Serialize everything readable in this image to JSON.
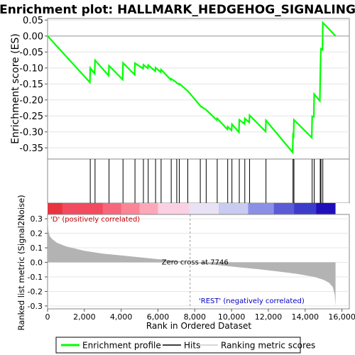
{
  "chart_data": {
    "type": "line",
    "title": "Enrichment plot: HALLMARK_HEDGEHOG_SIGNALING",
    "es_panel": {
      "ylabel": "Enrichment score (ES)",
      "ylim": [
        -0.385,
        0.055
      ],
      "yticks": [
        0.05,
        0.0,
        -0.05,
        -0.1,
        -0.15,
        -0.2,
        -0.25,
        -0.3,
        -0.35
      ],
      "ytick_labels": [
        "0.05",
        "0.00",
        "-0.05",
        "-0.10",
        "-0.15",
        "-0.20",
        "-0.25",
        "-0.30",
        "-0.35"
      ],
      "series": [
        {
          "name": "Enrichment profile",
          "color": "#00ff00",
          "x": [
            0,
            2300,
            2320,
            2560,
            2580,
            3320,
            3340,
            4080,
            4100,
            4730,
            4750,
            5190,
            5210,
            5450,
            5470,
            5850,
            5870,
            6150,
            6170,
            6700,
            6720,
            7000,
            7020,
            7140,
            7160,
            7620,
            8280,
            8300,
            8600,
            8620,
            9200,
            9220,
            9770,
            9790,
            10000,
            10020,
            10400,
            10420,
            10700,
            10720,
            10960,
            10980,
            11850,
            11870,
            13320,
            13340,
            13370,
            13390,
            14360,
            14380,
            14470,
            14490,
            14800,
            14820,
            14840,
            14860,
            14940,
            14960,
            15650
          ],
          "y": [
            0.0,
            -0.145,
            -0.1,
            -0.118,
            -0.076,
            -0.124,
            -0.093,
            -0.136,
            -0.084,
            -0.121,
            -0.085,
            -0.102,
            -0.09,
            -0.101,
            -0.091,
            -0.11,
            -0.099,
            -0.113,
            -0.105,
            -0.137,
            -0.134,
            -0.145,
            -0.147,
            -0.151,
            -0.149,
            -0.172,
            -0.217,
            -0.219,
            -0.23,
            -0.231,
            -0.263,
            -0.258,
            -0.292,
            -0.284,
            -0.295,
            -0.276,
            -0.301,
            -0.262,
            -0.275,
            -0.258,
            -0.27,
            -0.248,
            -0.299,
            -0.264,
            -0.364,
            -0.31,
            -0.313,
            -0.262,
            -0.318,
            -0.251,
            -0.253,
            -0.182,
            -0.203,
            -0.125,
            -0.07,
            -0.04,
            -0.043,
            0.042,
            0.0
          ]
        }
      ]
    },
    "hits_panel": {
      "series": [
        {
          "name": "Hits",
          "color": "#000000",
          "x": [
            2320,
            2580,
            3340,
            4100,
            4750,
            5210,
            5470,
            5870,
            6170,
            6720,
            7020,
            7160,
            7620,
            8300,
            8620,
            9220,
            9790,
            10020,
            10420,
            10720,
            10980,
            11870,
            13340,
            13390,
            14380,
            14490,
            14820,
            14860,
            14960
          ]
        }
      ]
    },
    "colorbar": {
      "label_positive": "'D' (positively correlated)",
      "label_negative": "'REST' (negatively correlated)",
      "segments": [
        {
          "to": 800,
          "color": "#e8343f"
        },
        {
          "to": 3000,
          "color": "#f24a5f"
        },
        {
          "to": 4000,
          "color": "#f7677c"
        },
        {
          "to": 5000,
          "color": "#fb8597"
        },
        {
          "to": 6000,
          "color": "#fda8b9"
        },
        {
          "to": 7700,
          "color": "#fcd0e3"
        },
        {
          "to": 9300,
          "color": "#e8e2f4"
        },
        {
          "to": 10900,
          "color": "#c9cbf0"
        },
        {
          "to": 12300,
          "color": "#8b8fe6"
        },
        {
          "to": 13400,
          "color": "#5b5bd6"
        },
        {
          "to": 14600,
          "color": "#3c3ccb"
        },
        {
          "to": 15650,
          "color": "#1f0fbb"
        }
      ]
    },
    "metric_panel": {
      "ylabel": "Ranked list metric (Signal2Noise)",
      "xlabel": "Rank in Ordered Dataset",
      "ylim": [
        -0.32,
        0.33
      ],
      "yticks": [
        0.3,
        0.2,
        0.1,
        0.0,
        -0.1,
        -0.2,
        -0.3
      ],
      "ytick_labels": [
        "0.3",
        "0.2",
        "0.1",
        "0.0",
        "-0.1",
        "-0.2",
        "-0.3"
      ],
      "xlim": [
        0,
        16400
      ],
      "xticks": [
        0,
        2000,
        4000,
        6000,
        8000,
        10000,
        12000,
        14000,
        16000
      ],
      "xtick_labels": [
        "0",
        "2,000",
        "4,000",
        "6,000",
        "8,000",
        "10,000",
        "12,000",
        "14,000",
        "16,000"
      ],
      "zero_cross": 7746,
      "zero_cross_label": "Zero cross at 7746",
      "color": "#b3b3b3",
      "profile": {
        "rank": [
          0,
          40,
          120,
          250,
          500,
          1000,
          2000,
          3000,
          4000,
          5000,
          6000,
          7000,
          7746,
          8500,
          9500,
          10500,
          11500,
          12500,
          13500,
          14500,
          15000,
          15300,
          15500,
          15600,
          15650
        ],
        "value": [
          0.31,
          0.22,
          0.18,
          0.16,
          0.135,
          0.11,
          0.08,
          0.06,
          0.048,
          0.035,
          0.022,
          0.01,
          0.0,
          -0.01,
          -0.022,
          -0.035,
          -0.048,
          -0.062,
          -0.078,
          -0.1,
          -0.12,
          -0.14,
          -0.17,
          -0.22,
          -0.3
        ]
      }
    },
    "legend": [
      {
        "label": "Enrichment profile",
        "color": "#00ff00"
      },
      {
        "label": "Hits",
        "color": "#000000"
      },
      {
        "label": "Ranking metric scores",
        "color": "#cccccc"
      }
    ]
  }
}
